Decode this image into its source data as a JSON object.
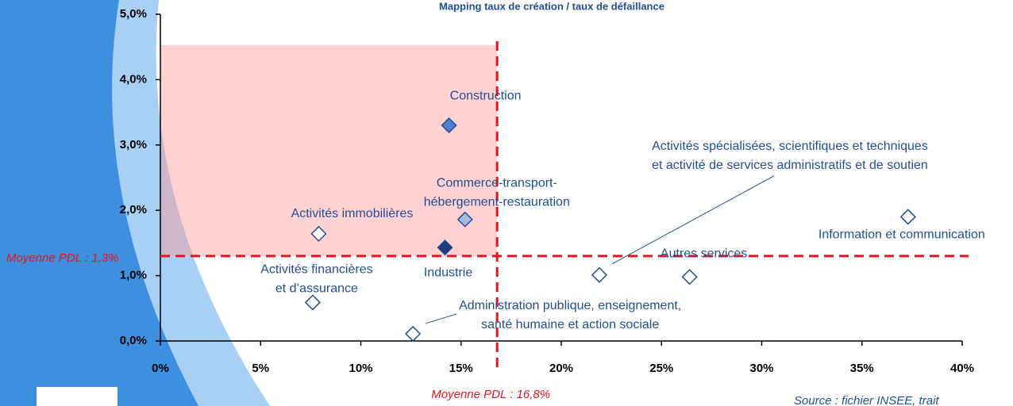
{
  "chart_data": {
    "type": "scatter",
    "title": "Mapping taux de création / taux de défaillance",
    "xlim": [
      0,
      40
    ],
    "ylim": [
      0,
      5
    ],
    "xticks": [
      {
        "value": 0,
        "label": "0%"
      },
      {
        "value": 5,
        "label": "5%"
      },
      {
        "value": 10,
        "label": "10%"
      },
      {
        "value": 15,
        "label": "15%"
      },
      {
        "value": 20,
        "label": "20%"
      },
      {
        "value": 25,
        "label": "25%"
      },
      {
        "value": 30,
        "label": "30%"
      },
      {
        "value": 35,
        "label": "35%"
      },
      {
        "value": 40,
        "label": "40%"
      }
    ],
    "yticks": [
      {
        "value": 0,
        "label": "0,0%"
      },
      {
        "value": 1,
        "label": "1,0%"
      },
      {
        "value": 2,
        "label": "2,0%"
      },
      {
        "value": 3,
        "label": "3,0%"
      },
      {
        "value": 4,
        "label": "4,0%"
      },
      {
        "value": 5,
        "label": "5,0%"
      }
    ],
    "series": [
      {
        "name": "Construction",
        "color": "#4f7fd0",
        "x": [
          14.4
        ],
        "values": [
          3.3
        ]
      },
      {
        "name": "Commerce-transport-\nhébergement-restauration",
        "color": "#a9b8dd",
        "x": [
          15.2
        ],
        "values": [
          1.86
        ]
      },
      {
        "name": "Activités immobilières",
        "color": "#ffffff",
        "x": [
          7.9
        ],
        "values": [
          1.64
        ]
      },
      {
        "name": "Industrie",
        "color": "#1f3a7a",
        "x": [
          14.2
        ],
        "values": [
          1.43
        ]
      },
      {
        "name": "Activités financières\net d’assurance",
        "color": "#ffffff",
        "x": [
          7.6
        ],
        "values": [
          0.59
        ]
      },
      {
        "name": "Administration publique, enseignement,\nsanté humaine et action sociale",
        "color": "#ffffff",
        "x": [
          12.6
        ],
        "values": [
          0.11
        ]
      },
      {
        "name": "Activités spécialisées, scientifiques et techniques\net activité de services administratifs et de soutien",
        "color": "#ffffff",
        "x": [
          21.9
        ],
        "values": [
          1.01
        ]
      },
      {
        "name": "Autres services",
        "color": "#ffffff",
        "x": [
          26.4
        ],
        "values": [
          0.98
        ]
      },
      {
        "name": "Information et communication",
        "color": "#ffffff",
        "x": [
          37.3
        ],
        "values": [
          1.9
        ]
      }
    ],
    "reference_lines": [
      {
        "axis": "x",
        "value": 16.8,
        "label": "Moyenne PDL : 16,8%"
      },
      {
        "axis": "y",
        "value": 1.3,
        "label": "Moyenne PDL : 1,3%"
      }
    ],
    "reference_color": "#e8141c",
    "source": "Source : fichier INSEE, trait"
  }
}
